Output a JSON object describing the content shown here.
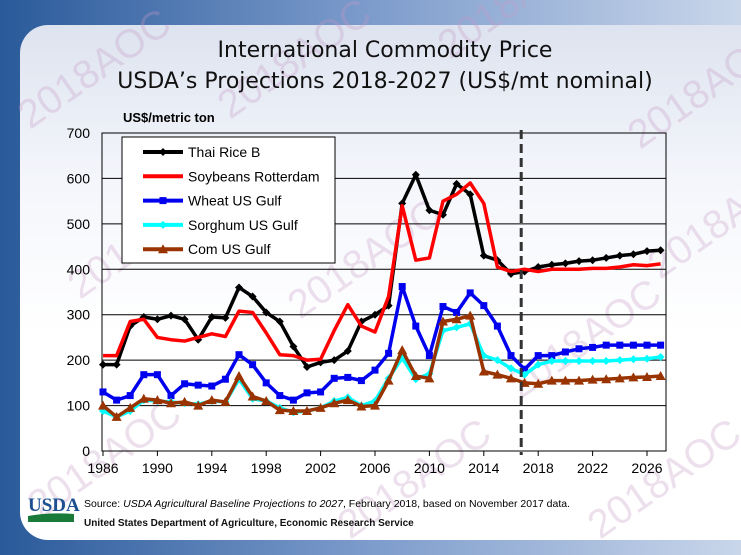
{
  "chart_data": {
    "type": "line",
    "title": [
      "International Commodity Price",
      "USDA’s Projections 2018-2027 (US$/mt nominal)"
    ],
    "ylabel": "US$/metric ton",
    "xlabel": "",
    "ylim": [
      0,
      700
    ],
    "yticks": [
      0,
      100,
      200,
      300,
      400,
      500,
      600,
      700
    ],
    "xticks": [
      1986,
      1990,
      1994,
      1998,
      2002,
      2006,
      2010,
      2014,
      2018,
      2022,
      2026
    ],
    "projection_start": 2016.75,
    "legend_position": "top-left",
    "x": [
      1986,
      1987,
      1988,
      1989,
      1990,
      1991,
      1992,
      1993,
      1994,
      1995,
      1996,
      1997,
      1998,
      1999,
      2000,
      2001,
      2002,
      2003,
      2004,
      2005,
      2006,
      2007,
      2008,
      2009,
      2010,
      2011,
      2012,
      2013,
      2014,
      2015,
      2016,
      2017,
      2018,
      2019,
      2020,
      2021,
      2022,
      2023,
      2024,
      2025,
      2026,
      2027
    ],
    "series": [
      {
        "name": "Thai Rice B",
        "color": "#000000",
        "marker": "diamond",
        "values": [
          190,
          190,
          275,
          295,
          290,
          298,
          290,
          245,
          295,
          293,
          360,
          340,
          305,
          285,
          230,
          185,
          195,
          200,
          220,
          285,
          300,
          320,
          545,
          608,
          530,
          520,
          588,
          565,
          430,
          420,
          390,
          395,
          405,
          410,
          413,
          418,
          420,
          425,
          430,
          433,
          440,
          442
        ]
      },
      {
        "name": "Soybeans Rotterdam",
        "color": "#ff0000",
        "marker": "none",
        "values": [
          210,
          210,
          285,
          290,
          250,
          245,
          242,
          250,
          258,
          252,
          308,
          305,
          260,
          212,
          210,
          200,
          202,
          265,
          322,
          275,
          262,
          340,
          540,
          420,
          425,
          550,
          565,
          590,
          545,
          405,
          395,
          400,
          395,
          400,
          400,
          400,
          402,
          402,
          405,
          410,
          408,
          412
        ]
      },
      {
        "name": "Wheat US Gulf",
        "color": "#0000ee",
        "marker": "square",
        "values": [
          130,
          112,
          122,
          168,
          168,
          122,
          148,
          145,
          143,
          158,
          212,
          190,
          150,
          122,
          112,
          128,
          130,
          160,
          162,
          155,
          178,
          215,
          362,
          275,
          210,
          318,
          305,
          348,
          320,
          275,
          210,
          180,
          210,
          210,
          218,
          225,
          228,
          233,
          233,
          233,
          233,
          233
        ]
      },
      {
        "name": "Sorghum US Gulf",
        "color": "#00ffff",
        "marker": "diamond",
        "values": [
          88,
          75,
          88,
          112,
          110,
          108,
          105,
          103,
          110,
          108,
          158,
          115,
          110,
          95,
          85,
          88,
          95,
          110,
          118,
          100,
          110,
          160,
          205,
          158,
          170,
          265,
          272,
          280,
          210,
          200,
          182,
          168,
          190,
          198,
          198,
          198,
          198,
          198,
          200,
          202,
          203,
          207
        ]
      },
      {
        "name": "Com US Gulf",
        "color": "#993300",
        "marker": "triangle",
        "values": [
          100,
          75,
          95,
          115,
          112,
          105,
          108,
          100,
          112,
          108,
          165,
          120,
          110,
          90,
          88,
          88,
          95,
          105,
          112,
          98,
          100,
          155,
          222,
          165,
          160,
          285,
          290,
          298,
          175,
          168,
          160,
          150,
          148,
          155,
          155,
          155,
          157,
          158,
          160,
          162,
          163,
          165
        ]
      }
    ]
  },
  "footer": {
    "source_prefix": "Source: ",
    "source_italic": "USDA Agricultural Baseline Projections to 2027",
    "source_suffix": ", February 2018, based on November 2017 data.",
    "agency": "United States Department of Agriculture, Economic Research Service",
    "logo_text": "USDA"
  },
  "watermark": "2018AOC"
}
